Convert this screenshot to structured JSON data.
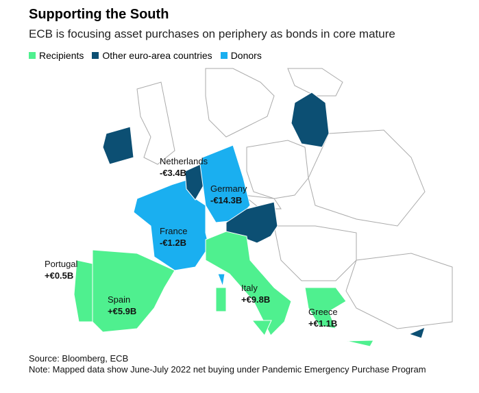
{
  "header": {
    "title": "Supporting the South",
    "subtitle": "ECB is focusing asset purchases on periphery as bonds in core mature"
  },
  "legend": [
    {
      "name": "Recipients",
      "color": "#4ff08f"
    },
    {
      "name": "Other euro-area countries",
      "color": "#0c4f73"
    },
    {
      "name": "Donors",
      "color": "#1aaff0"
    }
  ],
  "labels": [
    {
      "name": "Netherlands",
      "value": "-€3.4B"
    },
    {
      "name": "Germany",
      "value": "-€14.3B"
    },
    {
      "name": "France",
      "value": "-€1.2B"
    },
    {
      "name": "Portugal",
      "value": "+€0.5B"
    },
    {
      "name": "Spain",
      "value": "+€5.9B"
    },
    {
      "name": "Italy",
      "value": "+€9.8B"
    },
    {
      "name": "Greece",
      "value": "+€1.1B"
    }
  ],
  "footer": {
    "source": "Source: Bloomberg, ECB",
    "note": "Note: Mapped data show June-July 2022 net buying under Pandemic Emergency Purchase Program"
  }
}
